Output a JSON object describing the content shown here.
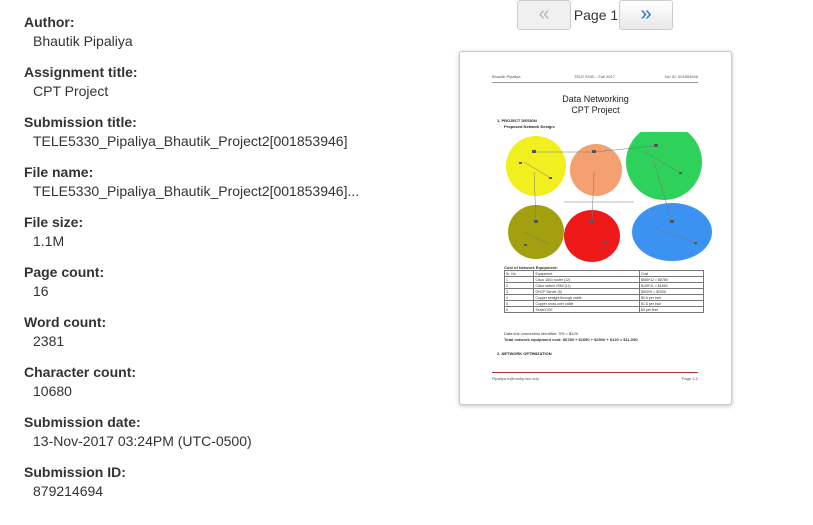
{
  "metadata": {
    "fields": [
      {
        "label": "Author:",
        "value": "Bhautik Pipaliya"
      },
      {
        "label": "Assignment title:",
        "value": "CPT Project"
      },
      {
        "label": "Submission title:",
        "value": "TELE5330_Pipaliya_Bhautik_Project2[001853946]"
      },
      {
        "label": "File name:",
        "value": "TELE5330_Pipaliya_Bhautik_Project2[001853946]..."
      },
      {
        "label": "File size:",
        "value": "1.1M"
      },
      {
        "label": "Page count:",
        "value": "16"
      },
      {
        "label": "Word count:",
        "value": "2381"
      },
      {
        "label": "Character count:",
        "value": "10680"
      },
      {
        "label": "Submission date:",
        "value": "13-Nov-2017 03:24PM (UTC-0500)"
      },
      {
        "label": "Submission ID:",
        "value": "879214694"
      }
    ]
  },
  "pager": {
    "prev_icon": "«",
    "next_icon": "»",
    "page_label": "Page 1"
  },
  "preview": {
    "header_left": "Bhautik Pipaliya",
    "header_center": "TELE 5330 – Fall 2017",
    "header_right": "NU ID: 001853946",
    "title_line1": "Data Networking",
    "title_line2": "CPT Project",
    "section1": "1.   PROJECT DESIGN",
    "subsection": "Proposed Network Design:",
    "cost_heading": "Cost of Network Equipment:",
    "table_headers": [
      "Sr. No.",
      "Equipment",
      "Cost"
    ],
    "table_rows": [
      [
        "1",
        "Cisco 1841 router (12)",
        "$565*12 = $6780"
      ],
      [
        "2",
        "Cisco switch 2960 (11)",
        "$150*11 = $1650"
      ],
      [
        "3",
        "DHCP Server (5)",
        "$500*5 = $2500"
      ],
      [
        "4",
        "Copper straight through cable",
        "$0.6 per inch"
      ],
      [
        "5",
        "Copper cross over cable",
        "$1.8 per inch"
      ],
      [
        "6",
        "Serial DCE",
        "$3 per feet"
      ]
    ],
    "dlci_line": "Data link connection identifier: 3*5 = $120",
    "total_line": "Total network equipment cost: $6780 + $1650 + $2500 + $120 = $11,050",
    "section2": "2.   NETWORK OPTIMIZATION",
    "footer_left": "Pipaliya.b@husky.neu.edu",
    "footer_right": "Page 1-2",
    "colors": {
      "yellow": "#f2ef1e",
      "orange": "#f5a070",
      "green": "#2ed15a",
      "olive": "#a3a010",
      "red": "#ee1a1a",
      "blue": "#3c92f0"
    }
  }
}
